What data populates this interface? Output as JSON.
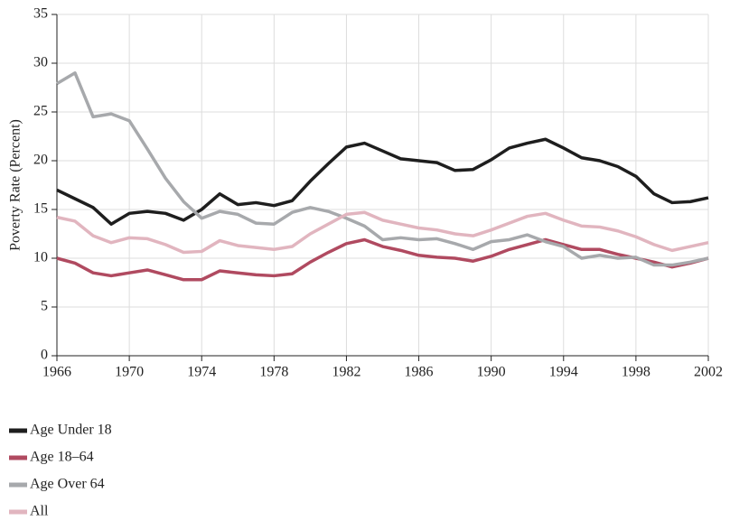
{
  "chart_data": {
    "type": "line",
    "y_label": "Poverty Rate (Percent)",
    "x": [
      1966,
      1967,
      1968,
      1969,
      1970,
      1971,
      1972,
      1973,
      1974,
      1975,
      1976,
      1977,
      1978,
      1979,
      1980,
      1981,
      1982,
      1983,
      1984,
      1985,
      1986,
      1987,
      1988,
      1989,
      1990,
      1991,
      1992,
      1993,
      1994,
      1995,
      1996,
      1997,
      1998,
      1999,
      2000,
      2001,
      2002
    ],
    "series": [
      {
        "name": "Age Under 18",
        "color": "#1e1e1e",
        "values": [
          17.0,
          16.1,
          15.2,
          13.5,
          14.6,
          14.8,
          14.6,
          13.9,
          15.0,
          16.6,
          15.5,
          15.7,
          15.4,
          15.9,
          17.9,
          19.7,
          21.4,
          21.8,
          21.0,
          20.2,
          20.0,
          19.8,
          19.0,
          19.1,
          20.1,
          21.3,
          21.8,
          22.2,
          21.3,
          20.3,
          20.0,
          19.4,
          18.4,
          16.6,
          15.7,
          15.8,
          16.2
        ]
      },
      {
        "name": "Age 18–64",
        "color": "#b04a60",
        "values": [
          10.0,
          9.5,
          8.5,
          8.2,
          8.5,
          8.8,
          8.3,
          7.8,
          7.8,
          8.7,
          8.5,
          8.3,
          8.2,
          8.4,
          9.6,
          10.6,
          11.5,
          11.9,
          11.2,
          10.8,
          10.3,
          10.1,
          10.0,
          9.7,
          10.2,
          10.9,
          11.4,
          11.9,
          11.4,
          10.9,
          10.9,
          10.4,
          10.0,
          9.6,
          9.1,
          9.5,
          10.0
        ]
      },
      {
        "name": "Age Over 64",
        "color": "#a7a9ac",
        "values": [
          27.9,
          29.0,
          24.5,
          24.8,
          24.1,
          21.2,
          18.2,
          15.8,
          14.1,
          14.8,
          14.5,
          13.6,
          13.5,
          14.7,
          15.2,
          14.8,
          14.1,
          13.3,
          11.9,
          12.1,
          11.9,
          12.0,
          11.5,
          10.9,
          11.7,
          11.9,
          12.4,
          11.7,
          11.2,
          10.0,
          10.3,
          10.0,
          10.1,
          9.3,
          9.3,
          9.6,
          10.0
        ]
      },
      {
        "name": "All",
        "color": "#e1b5bf",
        "values": [
          14.2,
          13.8,
          12.3,
          11.6,
          12.1,
          12.0,
          11.4,
          10.6,
          10.7,
          11.8,
          11.3,
          11.1,
          10.9,
          11.2,
          12.5,
          13.5,
          14.5,
          14.7,
          13.9,
          13.5,
          13.1,
          12.9,
          12.5,
          12.3,
          12.9,
          13.6,
          14.3,
          14.6,
          13.9,
          13.3,
          13.2,
          12.8,
          12.2,
          11.4,
          10.8,
          11.2,
          11.6
        ]
      }
    ],
    "xlim": [
      1966,
      2002
    ],
    "xticks": [
      1966,
      1970,
      1974,
      1978,
      1982,
      1986,
      1990,
      1994,
      1998,
      2002
    ],
    "ylim": [
      0,
      35
    ],
    "yticks": [
      0,
      5,
      10,
      15,
      20,
      25,
      30,
      35
    ],
    "grid": true
  }
}
